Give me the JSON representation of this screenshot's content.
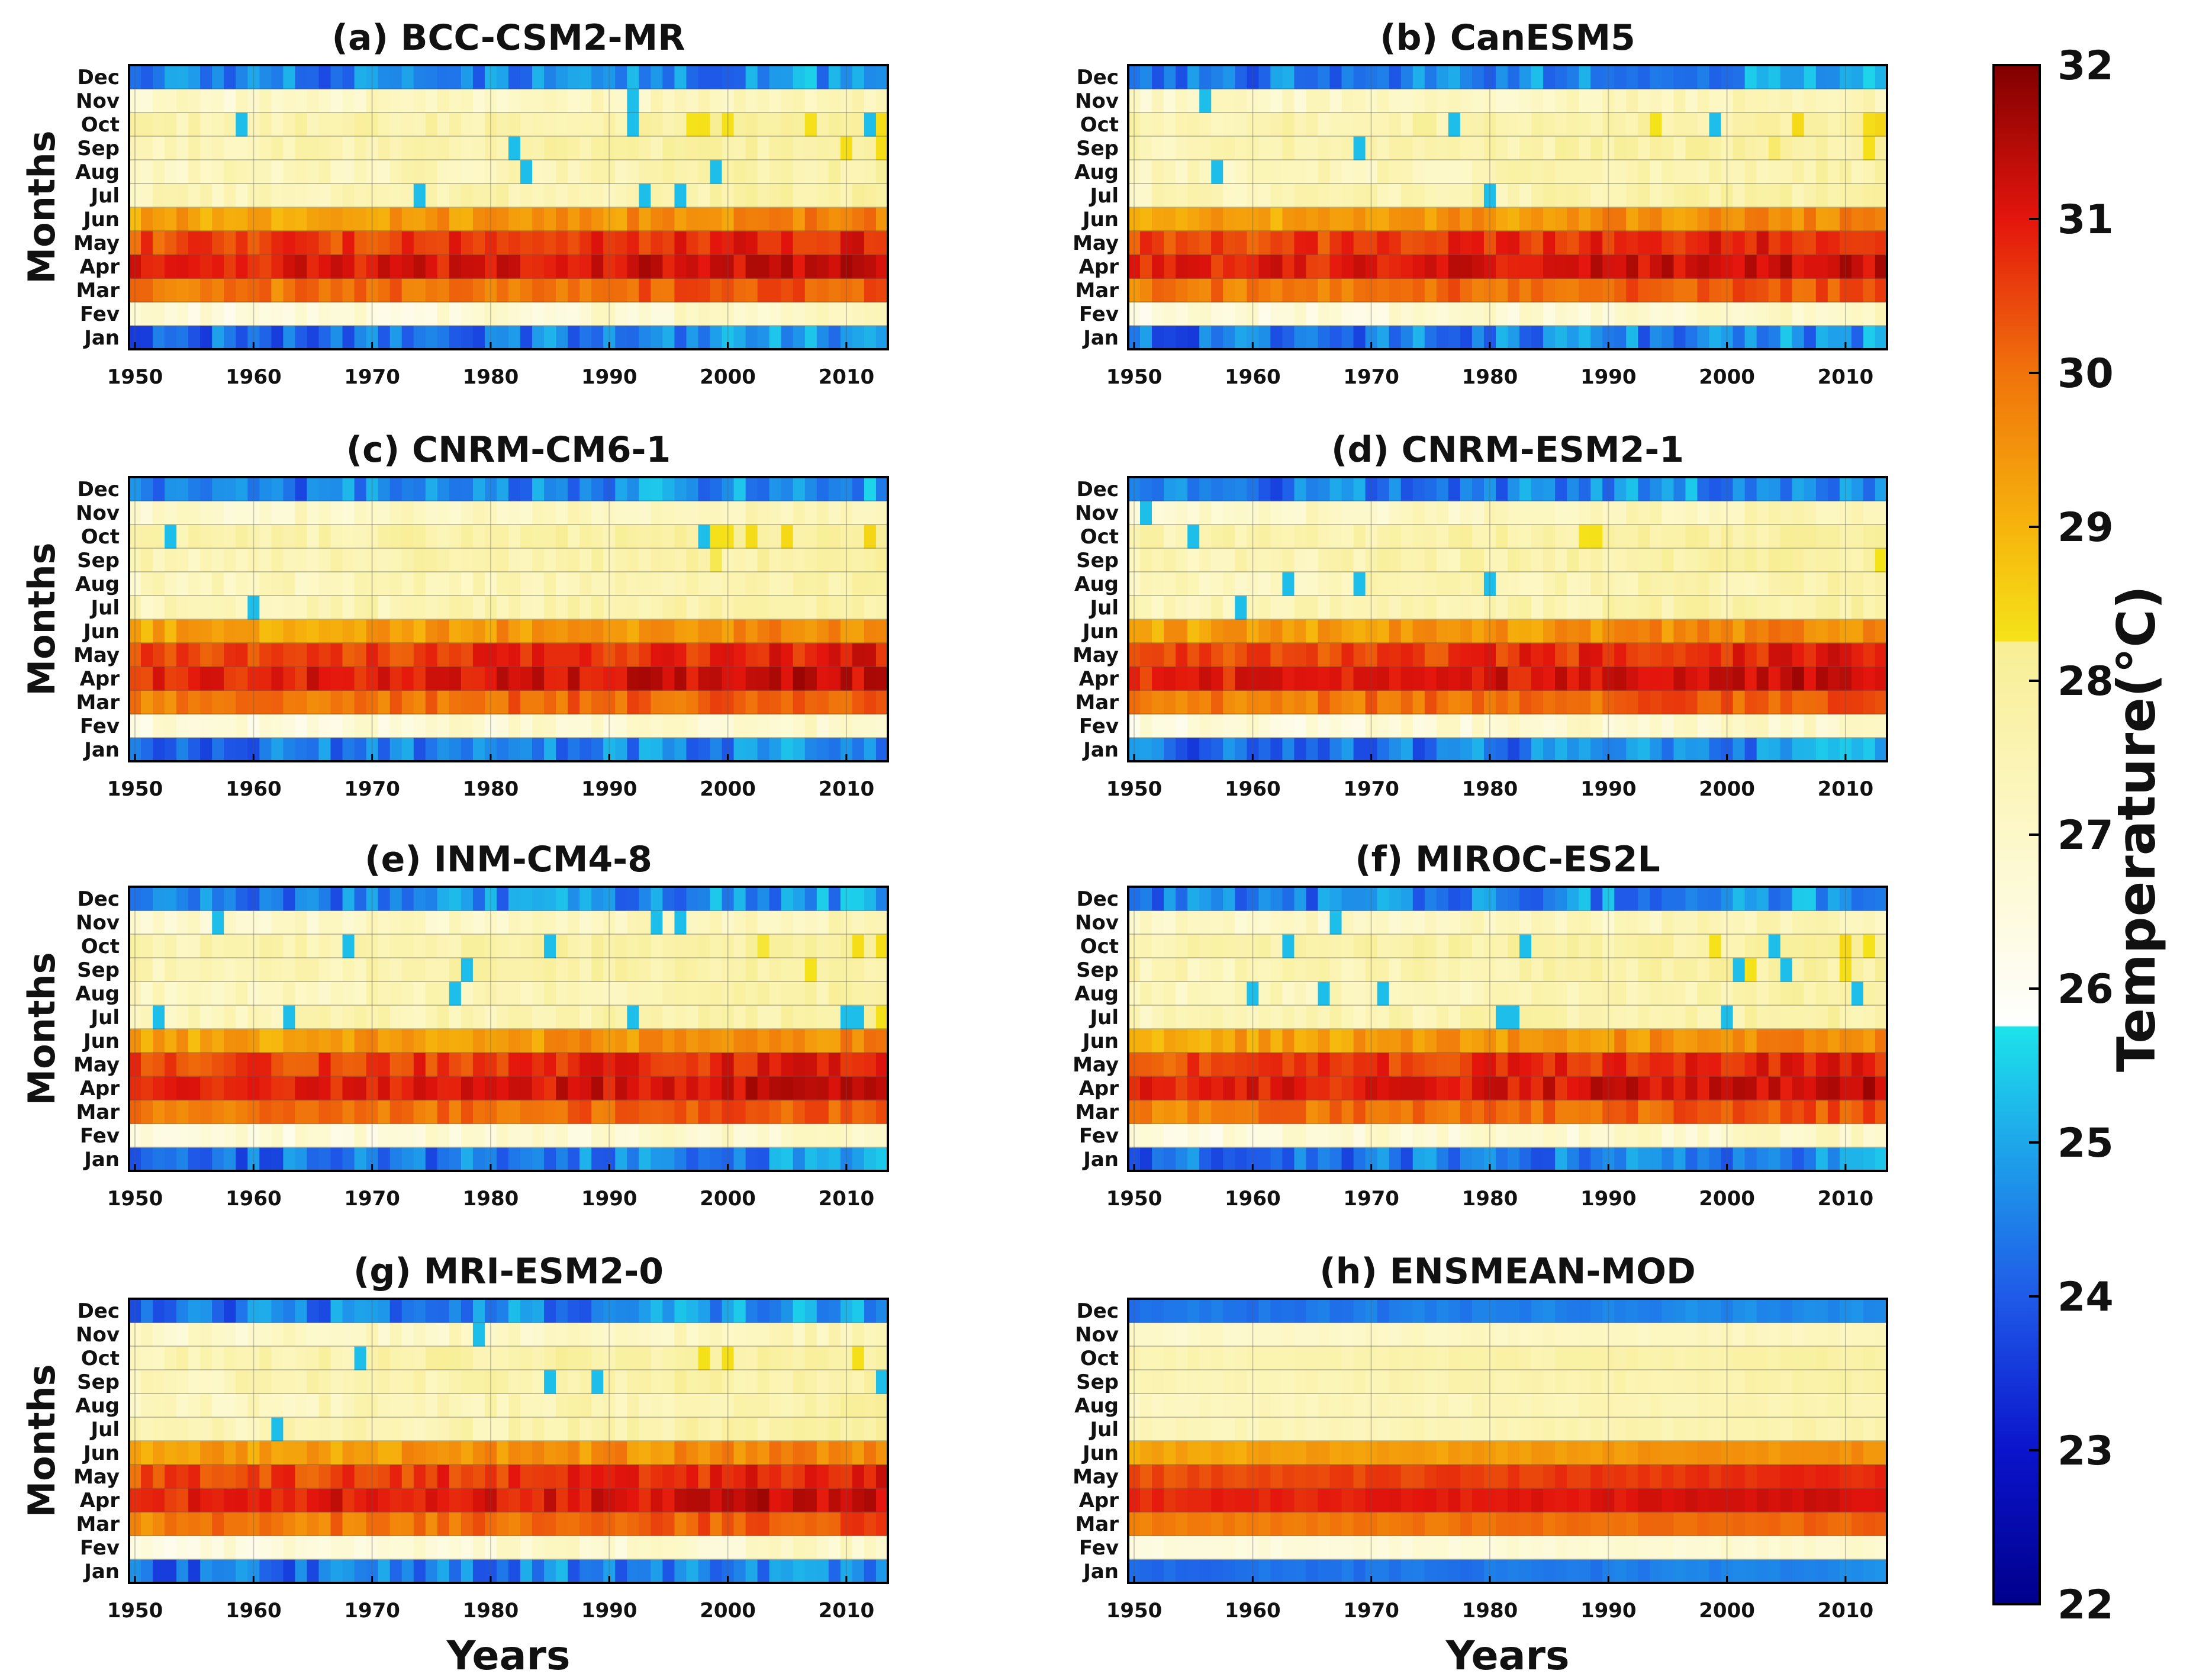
{
  "chart_data": {
    "type": "heatmap",
    "x_years": {
      "start": 1950,
      "end": 2013
    },
    "x_ticks": [
      1950,
      1960,
      1970,
      1980,
      1990,
      2000,
      2010
    ],
    "months": [
      "Jan",
      "Fev",
      "Mar",
      "Apr",
      "May",
      "Jun",
      "Jul",
      "Aug",
      "Sep",
      "Oct",
      "Nov",
      "Dec"
    ],
    "ylabel": "Months",
    "xlabel": "Years",
    "typical_monthly_temperature_c": {
      "Jan": 24.2,
      "Fev": 26.5,
      "Mar": 29.8,
      "Apr": 30.8,
      "May": 30.4,
      "Jun": 29.2,
      "Jul": 27.3,
      "Aug": 27.2,
      "Sep": 27.4,
      "Oct": 27.5,
      "Nov": 26.9,
      "Dec": 24.3
    },
    "panels": [
      {
        "title": "(a) BCC-CSM2-MR",
        "ylabel": "Months",
        "xlabel": "",
        "column": "left"
      },
      {
        "title": "(b) CanESM5",
        "ylabel": "",
        "xlabel": "",
        "column": "right"
      },
      {
        "title": "(c) CNRM-CM6-1",
        "ylabel": "Months",
        "xlabel": "",
        "column": "left"
      },
      {
        "title": "(d) CNRM-ESM2-1",
        "ylabel": "",
        "xlabel": "",
        "column": "right"
      },
      {
        "title": "(e) INM-CM4-8",
        "ylabel": "Months",
        "xlabel": "",
        "column": "left"
      },
      {
        "title": "(f) MIROC-ES2L",
        "ylabel": "",
        "xlabel": "",
        "column": "right"
      },
      {
        "title": "(g) MRI-ESM2-0",
        "ylabel": "Months",
        "xlabel": "Years",
        "column": "left"
      },
      {
        "title": "(h) ENSMEAN-MOD",
        "ylabel": "",
        "xlabel": "Years",
        "column": "right"
      }
    ],
    "colorbar": {
      "label": "Temperature(°C)",
      "range": [
        22,
        32
      ],
      "ticks": [
        22,
        23,
        24,
        25,
        26,
        27,
        28,
        29,
        30,
        31,
        32
      ],
      "stops": [
        {
          "value": 22.0,
          "color": "#00008b"
        },
        {
          "value": 23.0,
          "color": "#0b14cc"
        },
        {
          "value": 24.0,
          "color": "#1f5ae8"
        },
        {
          "value": 25.0,
          "color": "#1ea7ea"
        },
        {
          "value": 25.75,
          "color": "#1ce3ea"
        },
        {
          "value": 25.76,
          "color": "#fefefe"
        },
        {
          "value": 27.0,
          "color": "#fdf8c8"
        },
        {
          "value": 28.25,
          "color": "#f8ee95"
        },
        {
          "value": 28.26,
          "color": "#f5e31a"
        },
        {
          "value": 29.0,
          "color": "#f6b40c"
        },
        {
          "value": 30.0,
          "color": "#f0730b"
        },
        {
          "value": 31.0,
          "color": "#e4150d"
        },
        {
          "value": 32.0,
          "color": "#800000"
        }
      ]
    }
  }
}
